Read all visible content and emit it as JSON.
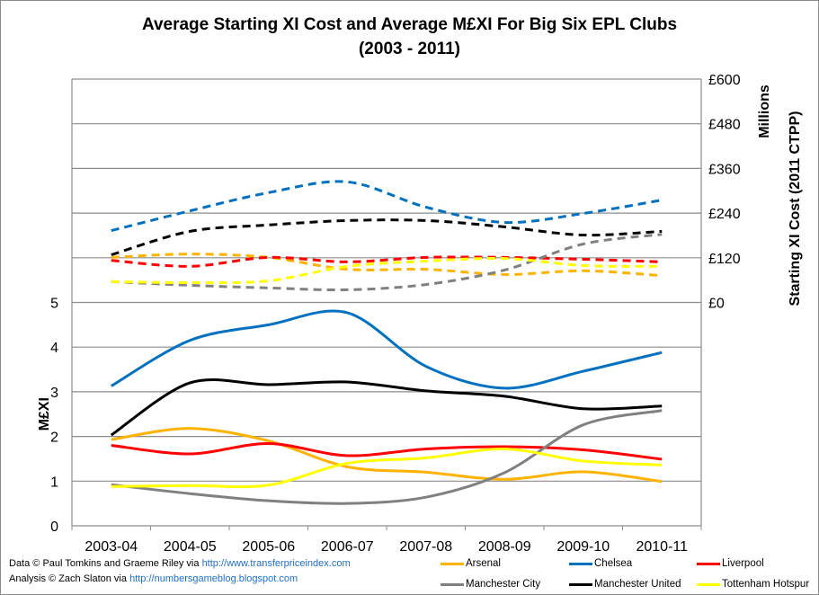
{
  "chart_data": {
    "type": "line",
    "title": "Average Starting XI Cost and Average M£XI For Big Six EPL Clubs",
    "subtitle": "(2003 - 2011)",
    "categories": [
      "2003-04",
      "2004-05",
      "2005-06",
      "2006-07",
      "2007-08",
      "2008-09",
      "2009-10",
      "2010-11"
    ],
    "left_axis": {
      "label": "M£XI",
      "ticks": [
        "0",
        "1",
        "2",
        "3",
        "4",
        "5"
      ],
      "range": [
        0,
        10
      ]
    },
    "right_axis": {
      "label": "Starting XI Cost (2011 CTPP)",
      "unit_label": "Millions",
      "ticks": [
        "£0",
        "£120",
        "£240",
        "£360",
        "£480",
        "£600"
      ],
      "range": [
        -600,
        600
      ]
    },
    "grid": true,
    "legend_position": "bottom",
    "series": [
      {
        "name": "Arsenal",
        "color": "#ffb300",
        "mxi": [
          1.93,
          2.18,
          1.9,
          1.32,
          1.2,
          1.04,
          1.21,
          0.99
        ],
        "cost": [
          121,
          130,
          121,
          89,
          89,
          75,
          85,
          72
        ]
      },
      {
        "name": "Chelsea",
        "color": "#0070c0",
        "mxi": [
          3.13,
          4.15,
          4.5,
          4.77,
          3.57,
          3.08,
          3.46,
          3.88
        ],
        "cost": [
          193,
          246,
          295,
          324,
          256,
          215,
          239,
          275
        ]
      },
      {
        "name": "Liverpool",
        "color": "#ff0000",
        "mxi": [
          1.8,
          1.61,
          1.84,
          1.57,
          1.72,
          1.77,
          1.7,
          1.49
        ],
        "cost": [
          113,
          97,
          121,
          109,
          121,
          121,
          116,
          109
        ]
      },
      {
        "name": "Manchester City",
        "color": "#808080",
        "mxi": [
          0.92,
          0.72,
          0.56,
          0.5,
          0.64,
          1.19,
          2.26,
          2.58
        ],
        "cost": [
          56,
          46,
          39,
          34,
          48,
          87,
          157,
          183
        ]
      },
      {
        "name": "Manchester United",
        "color": "#000000",
        "mxi": [
          2.03,
          3.2,
          3.16,
          3.22,
          3.02,
          2.9,
          2.62,
          2.68
        ],
        "cost": [
          128,
          191,
          208,
          220,
          220,
          203,
          181,
          191
        ]
      },
      {
        "name": "Tottenham Hotspur",
        "color": "#ffff00",
        "mxi": [
          0.88,
          0.9,
          0.91,
          1.4,
          1.52,
          1.72,
          1.45,
          1.36
        ],
        "cost": [
          56,
          53,
          58,
          97,
          111,
          118,
          99,
          97
        ]
      }
    ]
  },
  "credits": {
    "line1_text": "Data ©  Paul Tomkins and Graeme  Riley via ",
    "line1_link": "http://www.transferpriceindex.com",
    "line2_text": "Analysis  © Zach Slaton via ",
    "line2_link": "http://numbersgameblog.blogspot.com"
  }
}
